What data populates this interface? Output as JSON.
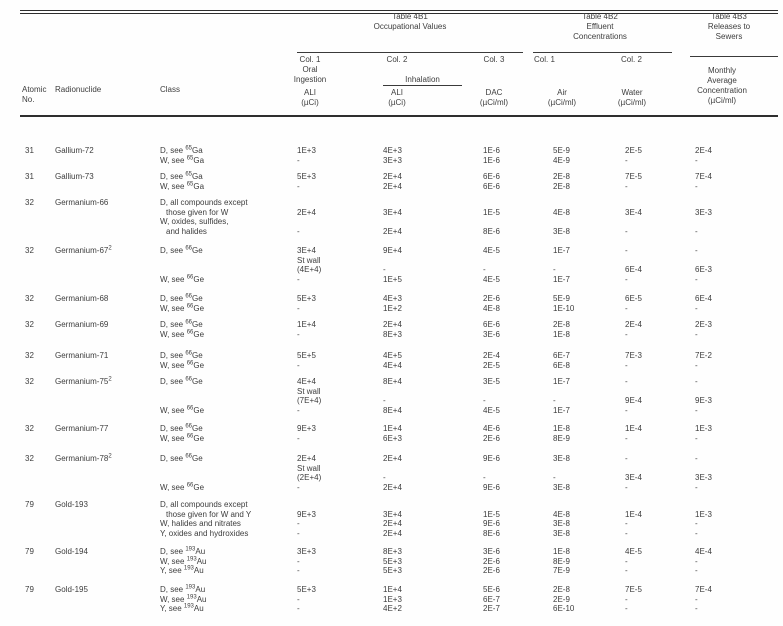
{
  "table": {
    "group_headers": {
      "t4b1": [
        "Table 4B1",
        "Occupational Values"
      ],
      "t4b2": [
        "Table 4B2",
        "Effluent",
        "Concentrations"
      ],
      "t4b3": [
        "Table 4B3",
        "Releases to",
        "Sewers"
      ]
    },
    "column_headers": {
      "atomic": [
        "Atomic",
        "No."
      ],
      "radionuclide": "Radionuclide",
      "clazz": "Class",
      "oral": {
        "col": "Col. 1",
        "sub1": "Oral",
        "sub2": "Ingestion",
        "measure": "ALI",
        "unit": "(µCi)"
      },
      "inh_ali": {
        "col": "Col. 2",
        "measure": "ALI",
        "unit": "(µCi)"
      },
      "inhalation": "Inhalation",
      "dac": {
        "col": "Col. 3",
        "measure": "DAC",
        "unit": "(µCi/ml)"
      },
      "air": {
        "col": "Col. 1",
        "measure": "Air",
        "unit": "(µCi/ml)"
      },
      "water": {
        "col": "Col. 2",
        "measure": "Water",
        "unit": "(µCi/ml)"
      },
      "sewer": {
        "sub1": "Monthly",
        "sub2": "Average",
        "sub3": "Concentration",
        "unit": "(µCi/ml)"
      }
    },
    "rows": [
      {
        "atomic": "31",
        "name": "Gallium-72",
        "sup": "",
        "lines": [
          {
            "c": [
              "D, see ",
              "65",
              "Ga"
            ],
            "v": [
              "1E+3",
              "4E+3",
              "1E-6",
              "5E-9",
              "2E-5",
              "2E-4"
            ]
          },
          {
            "c": [
              "W, see ",
              "65",
              "Ga"
            ],
            "v": [
              "-",
              "3E+3",
              "1E-6",
              "4E-9",
              "-",
              "-"
            ]
          }
        ]
      },
      {
        "atomic": "31",
        "name": "Gallium-73",
        "sup": "",
        "lines": [
          {
            "c": [
              "D, see ",
              "65",
              "Ga"
            ],
            "v": [
              "5E+3",
              "2E+4",
              "6E-6",
              "2E-8",
              "7E-5",
              "7E-4"
            ]
          },
          {
            "c": [
              "W, see ",
              "65",
              "Ga"
            ],
            "v": [
              "-",
              "2E+4",
              "6E-6",
              "2E-8",
              "-",
              "-"
            ]
          }
        ]
      },
      {
        "atomic": "32",
        "name": "Germanium-66",
        "sup": "",
        "lines": [
          {
            "c": [
              "D, all compounds except",
              "",
              ""
            ],
            "v": [
              "",
              "",
              "",
              "",
              "",
              ""
            ]
          },
          {
            "c": [
              "those given for W",
              "",
              ""
            ],
            "i": 1,
            "v": [
              "2E+4",
              "3E+4",
              "1E-5",
              "4E-8",
              "3E-4",
              "3E-3"
            ]
          },
          {
            "c": [
              "W, oxides, sulfides,",
              "",
              ""
            ],
            "v": [
              "",
              "",
              "",
              "",
              "",
              ""
            ]
          },
          {
            "c": [
              "and halides",
              "",
              ""
            ],
            "i": 1,
            "v": [
              "-",
              "2E+4",
              "8E-6",
              "3E-8",
              "-",
              "-"
            ]
          }
        ]
      },
      {
        "atomic": "32",
        "name": "Germanium-67",
        "sup": "2",
        "lines": [
          {
            "c": [
              "D, see ",
              "66",
              "Ge"
            ],
            "v": [
              "3E+4",
              "9E+4",
              "4E-5",
              "1E-7",
              "-",
              "-"
            ]
          },
          {
            "c": [
              "",
              "",
              ""
            ],
            "v": [
              "St wall",
              "",
              "",
              "",
              "",
              ""
            ]
          },
          {
            "c": [
              "",
              "",
              ""
            ],
            "v": [
              "(4E+4)",
              "-",
              "-",
              "-",
              "6E-4",
              "6E-3"
            ]
          },
          {
            "c": [
              "W, see ",
              "66",
              "Ge"
            ],
            "v": [
              "-",
              "1E+5",
              "4E-5",
              "1E-7",
              "-",
              "-"
            ]
          }
        ]
      },
      {
        "atomic": "32",
        "name": "Germanium-68",
        "sup": "",
        "lines": [
          {
            "c": [
              "D, see ",
              "66",
              "Ge"
            ],
            "v": [
              "5E+3",
              "4E+3",
              "2E-6",
              "5E-9",
              "6E-5",
              "6E-4"
            ]
          },
          {
            "c": [
              "W, see ",
              "66",
              "Ge"
            ],
            "v": [
              "-",
              "1E+2",
              "4E-8",
              "1E-10",
              "-",
              "-"
            ]
          }
        ]
      },
      {
        "atomic": "32",
        "name": "Germanium-69",
        "sup": "",
        "lines": [
          {
            "c": [
              "D, see ",
              "66",
              "Ge"
            ],
            "v": [
              "1E+4",
              "2E+4",
              "6E-6",
              "2E-8",
              "2E-4",
              "2E-3"
            ]
          },
          {
            "c": [
              "W, see ",
              "66",
              "Ge"
            ],
            "v": [
              "-",
              "8E+3",
              "3E-6",
              "1E-8",
              "-",
              "-"
            ]
          }
        ]
      },
      {
        "atomic": "32",
        "name": "Germanium-71",
        "sup": "",
        "lines": [
          {
            "c": [
              "D, see ",
              "66",
              "Ge"
            ],
            "v": [
              "5E+5",
              "4E+5",
              "2E-4",
              "6E-7",
              "7E-3",
              "7E-2"
            ]
          },
          {
            "c": [
              "W, see ",
              "66",
              "Ge"
            ],
            "v": [
              "-",
              "4E+4",
              "2E-5",
              "6E-8",
              "-",
              "-"
            ]
          }
        ]
      },
      {
        "atomic": "32",
        "name": "Germanium-75",
        "sup": "2",
        "lines": [
          {
            "c": [
              "D, see ",
              "66",
              "Ge"
            ],
            "v": [
              "4E+4",
              "8E+4",
              "3E-5",
              "1E-7",
              "-",
              "-"
            ]
          },
          {
            "c": [
              "",
              "",
              ""
            ],
            "v": [
              "St wall",
              "",
              "",
              "",
              "",
              ""
            ]
          },
          {
            "c": [
              "",
              "",
              ""
            ],
            "v": [
              "(7E+4)",
              "-",
              "-",
              "-",
              "9E-4",
              "9E-3"
            ]
          },
          {
            "c": [
              "W, see ",
              "66",
              "Ge"
            ],
            "v": [
              "-",
              "8E+4",
              "4E-5",
              "1E-7",
              "-",
              "-"
            ]
          }
        ]
      },
      {
        "atomic": "32",
        "name": "Germanium-77",
        "sup": "",
        "lines": [
          {
            "c": [
              "D, see ",
              "66",
              "Ge"
            ],
            "v": [
              "9E+3",
              "1E+4",
              "4E-6",
              "1E-8",
              "1E-4",
              "1E-3"
            ]
          },
          {
            "c": [
              "W, see ",
              "66",
              "Ge"
            ],
            "v": [
              "-",
              "6E+3",
              "2E-6",
              "8E-9",
              "-",
              "-"
            ]
          }
        ]
      },
      {
        "atomic": "32",
        "name": "Germanium-78",
        "sup": "2",
        "lines": [
          {
            "c": [
              "D, see ",
              "66",
              "Ge"
            ],
            "v": [
              "2E+4",
              "2E+4",
              "9E-6",
              "3E-8",
              "-",
              "-"
            ]
          },
          {
            "c": [
              "",
              "",
              ""
            ],
            "v": [
              "St wall",
              "",
              "",
              "",
              "",
              ""
            ]
          },
          {
            "c": [
              "",
              "",
              ""
            ],
            "v": [
              "(2E+4)",
              "-",
              "-",
              "-",
              "3E-4",
              "3E-3"
            ]
          },
          {
            "c": [
              "W, see ",
              "66",
              "Ge"
            ],
            "v": [
              "-",
              "2E+4",
              "9E-6",
              "3E-8",
              "-",
              "-"
            ]
          }
        ]
      },
      {
        "atomic": "79",
        "name": "Gold-193",
        "sup": "",
        "lines": [
          {
            "c": [
              "D, all compounds except",
              "",
              ""
            ],
            "v": [
              "",
              "",
              "",
              "",
              "",
              ""
            ]
          },
          {
            "c": [
              "those given for W and Y",
              "",
              ""
            ],
            "i": 1,
            "v": [
              "9E+3",
              "3E+4",
              "1E-5",
              "4E-8",
              "1E-4",
              "1E-3"
            ]
          },
          {
            "c": [
              "W, halides and nitrates",
              "",
              ""
            ],
            "v": [
              "-",
              "2E+4",
              "9E-6",
              "3E-8",
              "-",
              "-"
            ]
          },
          {
            "c": [
              "Y, oxides and hydroxides",
              "",
              ""
            ],
            "v": [
              "-",
              "2E+4",
              "8E-6",
              "3E-8",
              "-",
              "-"
            ]
          }
        ]
      },
      {
        "atomic": "79",
        "name": "Gold-194",
        "sup": "",
        "lines": [
          {
            "c": [
              "D, see ",
              "193",
              "Au"
            ],
            "v": [
              "3E+3",
              "8E+3",
              "3E-6",
              "1E-8",
              "4E-5",
              "4E-4"
            ]
          },
          {
            "c": [
              "W, see ",
              "193",
              "Au"
            ],
            "v": [
              "-",
              "5E+3",
              "2E-6",
              "8E-9",
              "-",
              "-"
            ]
          },
          {
            "c": [
              "Y, see ",
              "193",
              "Au"
            ],
            "v": [
              "-",
              "5E+3",
              "2E-6",
              "7E-9",
              "-",
              "-"
            ]
          }
        ]
      },
      {
        "atomic": "79",
        "name": "Gold-195",
        "sup": "",
        "lines": [
          {
            "c": [
              "D, see ",
              "193",
              "Au"
            ],
            "v": [
              "5E+3",
              "1E+4",
              "5E-6",
              "2E-8",
              "7E-5",
              "7E-4"
            ]
          },
          {
            "c": [
              "W, see ",
              "193",
              "Au"
            ],
            "v": [
              "-",
              "1E+3",
              "6E-7",
              "2E-9",
              "-",
              "-"
            ]
          },
          {
            "c": [
              "Y, see ",
              "193",
              "Au"
            ],
            "v": [
              "-",
              "4E+2",
              "2E-7",
              "6E-10",
              "-",
              "-"
            ]
          }
        ]
      }
    ]
  }
}
